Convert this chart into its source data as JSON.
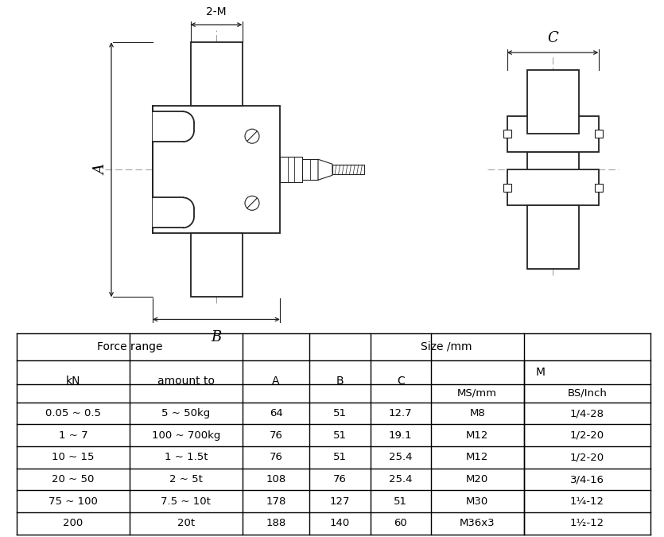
{
  "table_data": [
    [
      "0.05 ~ 0.5",
      "5 ~ 50kg",
      "64",
      "51",
      "12.7",
      "M8",
      "1/4-28"
    ],
    [
      "1 ~ 7",
      "100 ~ 700kg",
      "76",
      "51",
      "19.1",
      "M12",
      "1/2-20"
    ],
    [
      "10 ~ 15",
      "1 ~ 1.5t",
      "76",
      "51",
      "25.4",
      "M12",
      "1/2-20"
    ],
    [
      "20 ~ 50",
      "2 ~ 5t",
      "108",
      "76",
      "25.4",
      "M20",
      "3/4-16"
    ],
    [
      "75 ~ 100",
      "7.5 ~ 10t",
      "178",
      "127",
      "51",
      "M30",
      "1¼-12"
    ],
    [
      "200",
      "20t",
      "188",
      "140",
      "60",
      "M36x3",
      "1½-12"
    ]
  ],
  "lw_main": 1.3,
  "lw_thin": 0.8,
  "lw_dash": 0.7,
  "line_col": "#222222",
  "dash_col": "#999999"
}
